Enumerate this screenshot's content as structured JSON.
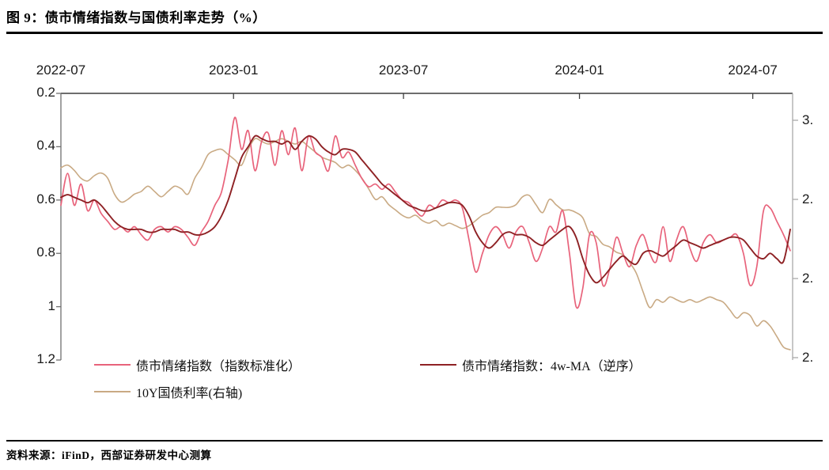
{
  "figure": {
    "title": "图 9：债市情绪指数与国债利率走势（%）",
    "source": "资料来源：iFinD，西部证券研发中心测算"
  },
  "colors": {
    "sentiment": "#E8637B",
    "sentiment_ma": "#8E2124",
    "yield10y": "#C9AA84",
    "axis_top": "#3d3d3d",
    "axis_left": "#6f6f6f",
    "axis_right": "#a9a9a9"
  },
  "legend": [
    {
      "label": "债市情绪指数（指数标准化）",
      "color": "#E8637B"
    },
    {
      "label": "债市情绪指数：4w-MA（逆序）",
      "color": "#8E2124"
    },
    {
      "label": "10Y国债利率(右轴)",
      "color": "#C9AA84"
    }
  ],
  "chart_data": {
    "type": "line",
    "title": "债市情绪指数与国债利率走势（%）",
    "grid": false,
    "legend_position": "bottom",
    "x_axis": {
      "position": "top",
      "ticks": [
        {
          "label": "2022-07",
          "week": 0
        },
        {
          "label": "2023-01",
          "week": 25.8
        },
        {
          "label": "2023-07",
          "week": 51.2
        },
        {
          "label": "2024-01",
          "week": 77.5
        },
        {
          "label": "2024-07",
          "week": 103.4
        }
      ]
    },
    "left_axis": {
      "description": "sentiment index scale, increasing downward (reversed)",
      "tick_values": [
        0.2,
        0.4,
        0.6,
        0.8,
        1,
        1.2
      ],
      "tick_labels": [
        "0.2",
        "0.4",
        "0.6",
        "0.8",
        "1",
        "1.2"
      ],
      "range": [
        0.2,
        1.2
      ]
    },
    "right_axis": {
      "description": "10Y yield %, labels clipped at image edge",
      "tick_values": [
        3.0,
        2.7,
        2.4,
        2.1
      ],
      "tick_labels": [
        "3.",
        "2.",
        "2.",
        "2."
      ],
      "range": [
        2.09,
        3.1
      ]
    },
    "x": [
      "2022-07-01",
      "2022-07-08",
      "2022-07-15",
      "2022-07-22",
      "2022-07-29",
      "2022-08-05",
      "2022-08-12",
      "2022-08-19",
      "2022-08-26",
      "2022-09-02",
      "2022-09-09",
      "2022-09-16",
      "2022-09-23",
      "2022-09-30",
      "2022-10-07",
      "2022-10-14",
      "2022-10-21",
      "2022-10-28",
      "2022-11-04",
      "2022-11-11",
      "2022-11-18",
      "2022-11-25",
      "2022-12-02",
      "2022-12-09",
      "2022-12-16",
      "2022-12-23",
      "2022-12-30",
      "2023-01-06",
      "2023-01-13",
      "2023-01-20",
      "2023-01-27",
      "2023-02-03",
      "2023-02-10",
      "2023-02-17",
      "2023-02-24",
      "2023-03-03",
      "2023-03-10",
      "2023-03-17",
      "2023-03-24",
      "2023-03-31",
      "2023-04-07",
      "2023-04-14",
      "2023-04-21",
      "2023-04-28",
      "2023-05-05",
      "2023-05-12",
      "2023-05-19",
      "2023-05-26",
      "2023-06-02",
      "2023-06-09",
      "2023-06-16",
      "2023-06-23",
      "2023-06-30",
      "2023-07-07",
      "2023-07-14",
      "2023-07-21",
      "2023-07-28",
      "2023-08-04",
      "2023-08-11",
      "2023-08-18",
      "2023-08-25",
      "2023-09-01",
      "2023-09-08",
      "2023-09-15",
      "2023-09-22",
      "2023-09-29",
      "2023-10-06",
      "2023-10-13",
      "2023-10-20",
      "2023-10-27",
      "2023-11-03",
      "2023-11-10",
      "2023-11-17",
      "2023-11-24",
      "2023-12-01",
      "2023-12-08",
      "2023-12-15",
      "2023-12-22",
      "2023-12-29",
      "2024-01-05",
      "2024-01-12",
      "2024-01-19",
      "2024-01-26",
      "2024-02-02",
      "2024-02-09",
      "2024-02-16",
      "2024-02-23",
      "2024-03-01",
      "2024-03-08",
      "2024-03-15",
      "2024-03-22",
      "2024-03-29",
      "2024-04-05",
      "2024-04-12",
      "2024-04-19",
      "2024-04-26",
      "2024-05-03",
      "2024-05-10",
      "2024-05-17",
      "2024-05-24",
      "2024-05-31",
      "2024-06-07",
      "2024-06-14",
      "2024-06-21",
      "2024-06-28",
      "2024-07-05",
      "2024-07-12",
      "2024-07-19",
      "2024-07-26",
      "2024-08-02"
    ],
    "series": [
      {
        "name": "债市情绪指数（指数标准化）",
        "axis": "left",
        "color": "#E8637B",
        "values": [
          0.62,
          0.5,
          0.62,
          0.54,
          0.64,
          0.6,
          0.65,
          0.68,
          0.71,
          0.7,
          0.72,
          0.7,
          0.73,
          0.75,
          0.71,
          0.7,
          0.72,
          0.7,
          0.71,
          0.74,
          0.77,
          0.72,
          0.68,
          0.62,
          0.57,
          0.45,
          0.29,
          0.41,
          0.34,
          0.49,
          0.38,
          0.35,
          0.47,
          0.34,
          0.43,
          0.33,
          0.49,
          0.36,
          0.42,
          0.44,
          0.49,
          0.36,
          0.44,
          0.42,
          0.47,
          0.52,
          0.55,
          0.54,
          0.56,
          0.54,
          0.57,
          0.6,
          0.61,
          0.64,
          0.66,
          0.62,
          0.63,
          0.6,
          0.61,
          0.6,
          0.63,
          0.75,
          0.87,
          0.8,
          0.73,
          0.7,
          0.73,
          0.78,
          0.72,
          0.7,
          0.76,
          0.83,
          0.78,
          0.7,
          0.72,
          0.64,
          0.8,
          1.0,
          0.93,
          0.73,
          0.76,
          0.92,
          0.86,
          0.74,
          0.8,
          0.85,
          0.77,
          0.73,
          0.8,
          0.83,
          0.7,
          0.83,
          0.75,
          0.7,
          0.78,
          0.83,
          0.76,
          0.73,
          0.76,
          0.75,
          0.74,
          0.73,
          0.8,
          0.92,
          0.85,
          0.64,
          0.63,
          0.68,
          0.73,
          0.79
        ]
      },
      {
        "name": "债市情绪指数：4w-MA（逆序）",
        "axis": "left",
        "color": "#8E2124",
        "values": [
          0.59,
          0.58,
          0.59,
          0.6,
          0.61,
          0.6,
          0.62,
          0.65,
          0.68,
          0.7,
          0.71,
          0.71,
          0.71,
          0.72,
          0.72,
          0.71,
          0.71,
          0.71,
          0.72,
          0.72,
          0.73,
          0.73,
          0.72,
          0.7,
          0.66,
          0.6,
          0.52,
          0.44,
          0.4,
          0.36,
          0.37,
          0.38,
          0.38,
          0.39,
          0.38,
          0.41,
          0.38,
          0.36,
          0.37,
          0.4,
          0.42,
          0.43,
          0.41,
          0.41,
          0.42,
          0.45,
          0.48,
          0.51,
          0.54,
          0.56,
          0.58,
          0.6,
          0.62,
          0.63,
          0.64,
          0.64,
          0.63,
          0.62,
          0.61,
          0.61,
          0.62,
          0.66,
          0.72,
          0.76,
          0.78,
          0.76,
          0.73,
          0.72,
          0.73,
          0.73,
          0.74,
          0.76,
          0.77,
          0.75,
          0.73,
          0.71,
          0.7,
          0.74,
          0.82,
          0.88,
          0.91,
          0.89,
          0.86,
          0.83,
          0.81,
          0.83,
          0.84,
          0.8,
          0.79,
          0.8,
          0.81,
          0.79,
          0.77,
          0.75,
          0.76,
          0.77,
          0.78,
          0.77,
          0.76,
          0.75,
          0.74,
          0.74,
          0.75,
          0.78,
          0.81,
          0.82,
          0.8,
          0.82,
          0.83,
          0.71
        ]
      },
      {
        "name": "10Y国债利率(右轴)",
        "axis": "right",
        "color": "#C9AA84",
        "values": [
          2.82,
          2.83,
          2.81,
          2.78,
          2.77,
          2.79,
          2.8,
          2.78,
          2.72,
          2.69,
          2.7,
          2.72,
          2.73,
          2.75,
          2.73,
          2.71,
          2.73,
          2.75,
          2.74,
          2.72,
          2.78,
          2.82,
          2.87,
          2.885,
          2.89,
          2.87,
          2.85,
          2.83,
          2.89,
          2.93,
          2.92,
          2.91,
          2.92,
          2.93,
          2.92,
          2.91,
          2.92,
          2.9,
          2.88,
          2.86,
          2.85,
          2.84,
          2.82,
          2.83,
          2.81,
          2.78,
          2.74,
          2.7,
          2.71,
          2.68,
          2.66,
          2.64,
          2.63,
          2.64,
          2.62,
          2.61,
          2.62,
          2.6,
          2.61,
          2.6,
          2.59,
          2.6,
          2.62,
          2.64,
          2.65,
          2.67,
          2.67,
          2.67,
          2.68,
          2.71,
          2.715,
          2.68,
          2.65,
          2.7,
          2.68,
          2.66,
          2.66,
          2.65,
          2.63,
          2.57,
          2.56,
          2.53,
          2.52,
          2.5,
          2.49,
          2.46,
          2.42,
          2.35,
          2.29,
          2.32,
          2.31,
          2.33,
          2.32,
          2.31,
          2.32,
          2.31,
          2.32,
          2.33,
          2.32,
          2.31,
          2.28,
          2.25,
          2.27,
          2.26,
          2.22,
          2.24,
          2.22,
          2.18,
          2.14,
          2.13
        ]
      }
    ]
  }
}
